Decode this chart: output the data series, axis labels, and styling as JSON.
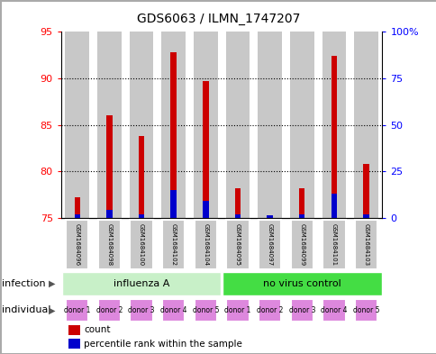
{
  "title": "GDS6063 / ILMN_1747207",
  "samples": [
    "GSM1684096",
    "GSM1684098",
    "GSM1684100",
    "GSM1684102",
    "GSM1684104",
    "GSM1684095",
    "GSM1684097",
    "GSM1684099",
    "GSM1684101",
    "GSM1684103"
  ],
  "red_values": [
    77.2,
    86.0,
    83.8,
    92.8,
    89.7,
    78.2,
    75.3,
    78.2,
    92.4,
    80.8
  ],
  "blue_values": [
    75.4,
    75.8,
    75.4,
    78.0,
    76.8,
    75.4,
    75.25,
    75.4,
    77.6,
    75.4
  ],
  "ylim_left": [
    75,
    95
  ],
  "ylim_right": [
    0,
    100
  ],
  "yticks_left": [
    75,
    80,
    85,
    90,
    95
  ],
  "yticks_right": [
    0,
    25,
    50,
    75,
    100
  ],
  "ytick_labels_right": [
    "0",
    "25",
    "50",
    "75",
    "100%"
  ],
  "infection_groups": [
    {
      "label": "influenza A",
      "start": 0,
      "end": 5,
      "color": "#c8f0c8"
    },
    {
      "label": "no virus control",
      "start": 5,
      "end": 10,
      "color": "#44dd44"
    }
  ],
  "individual_labels": [
    "donor 1",
    "donor 2",
    "donor 3",
    "donor 4",
    "donor 5",
    "donor 1",
    "donor 2",
    "donor 3",
    "donor 4",
    "donor 5"
  ],
  "individual_color": "#dd88dd",
  "bar_bg_color": "#c8c8c8",
  "bar_width": 0.75,
  "red_bar_width": 0.18,
  "blue_bar_width": 0.18,
  "legend_count_color": "#cc0000",
  "legend_percentile_color": "#0000cc",
  "infection_label": "infection",
  "individual_label": "individual",
  "grid_lines": [
    80,
    85,
    90
  ],
  "figure_border_color": "#aaaaaa"
}
